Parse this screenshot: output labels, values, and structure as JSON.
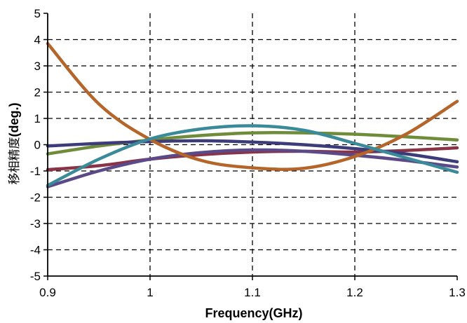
{
  "chart_data": {
    "type": "line",
    "title": "",
    "xlabel": "Frequency(GHz)",
    "ylabel_cjk": "移相精度",
    "ylabel": "(deg.)",
    "xlim": [
      0.9,
      1.3
    ],
    "ylim": [
      -5,
      5
    ],
    "x_ticks": [
      0.9,
      1.0,
      1.1,
      1.2,
      1.3
    ],
    "x_tick_labels": [
      "0.9",
      "1",
      "1.1",
      "1.2",
      "1.3"
    ],
    "y_ticks": [
      -5,
      -4,
      -3,
      -2,
      -1,
      0,
      1,
      2,
      3,
      4,
      5
    ],
    "y_tick_labels": [
      "-5",
      "-4",
      "-3",
      "-2",
      "-1",
      "0",
      "1",
      "2",
      "3",
      "4",
      "5"
    ],
    "grid": "dashed",
    "legend": "none",
    "x": [
      0.9,
      0.95,
      1.0,
      1.05,
      1.1,
      1.15,
      1.2,
      1.25,
      1.3
    ],
    "series": [
      {
        "color": "#b5652a",
        "values": [
          3.85,
          1.55,
          0.2,
          -0.6,
          -0.88,
          -0.9,
          -0.45,
          0.4,
          1.65
        ]
      },
      {
        "color": "#3a8a99",
        "values": [
          -1.55,
          -0.55,
          0.22,
          0.6,
          0.72,
          0.55,
          0.05,
          -0.5,
          -1.05
        ]
      },
      {
        "color": "#6f8c3a",
        "values": [
          -0.35,
          -0.05,
          0.18,
          0.35,
          0.45,
          0.45,
          0.4,
          0.3,
          0.18
        ]
      },
      {
        "color": "#3c3c7a",
        "values": [
          -0.05,
          0.05,
          0.12,
          0.15,
          0.1,
          0.0,
          -0.15,
          -0.35,
          -0.65
        ]
      },
      {
        "color": "#5b4a88",
        "values": [
          -1.6,
          -1.0,
          -0.55,
          -0.3,
          -0.2,
          -0.25,
          -0.4,
          -0.6,
          -0.85
        ]
      },
      {
        "color": "#8b3346",
        "values": [
          -0.95,
          -0.8,
          -0.55,
          -0.38,
          -0.28,
          -0.25,
          -0.28,
          -0.22,
          -0.12
        ]
      }
    ]
  }
}
